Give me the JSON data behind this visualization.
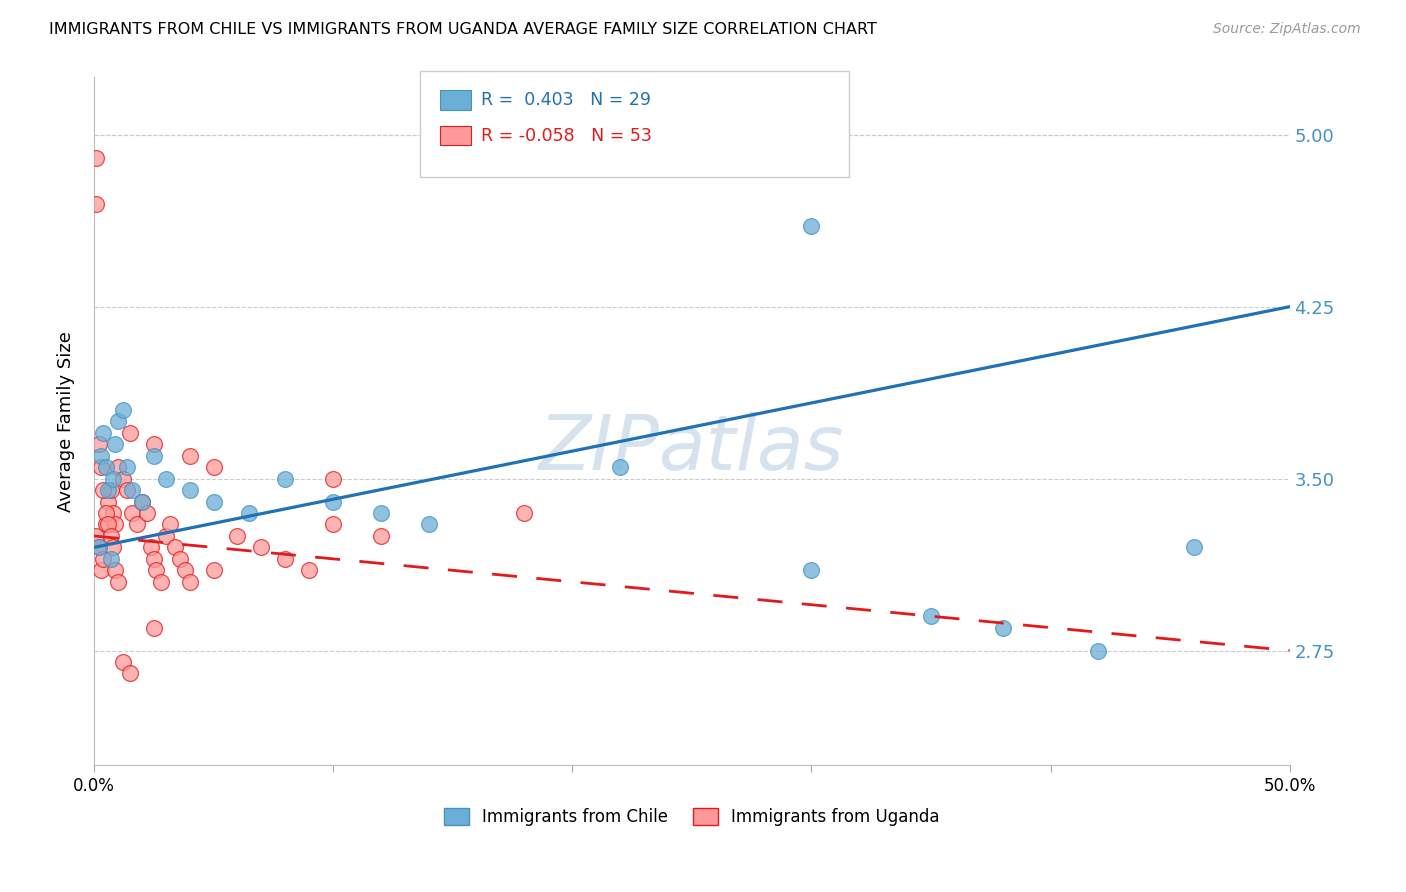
{
  "title": "IMMIGRANTS FROM CHILE VS IMMIGRANTS FROM UGANDA AVERAGE FAMILY SIZE CORRELATION CHART",
  "source": "Source: ZipAtlas.com",
  "ylabel": "Average Family Size",
  "yticks_right": [
    2.75,
    3.5,
    4.25,
    5.0
  ],
  "xlim": [
    0.0,
    0.5
  ],
  "ylim": [
    2.25,
    5.25
  ],
  "chile_color": "#6baed6",
  "chile_edge": "#4292c6",
  "uganda_color": "#fb9a99",
  "uganda_edge": "#e31a1c",
  "chile_R": 0.403,
  "chile_N": 29,
  "uganda_R": -0.058,
  "uganda_N": 53,
  "chile_line_color": "#2171b5",
  "uganda_line_color": "#e31a1c",
  "watermark": "ZIPatlas",
  "legend_label_chile": "Immigrants from Chile",
  "legend_label_uganda": "Immigrants from Uganda",
  "chile_x": [
    0.002,
    0.003,
    0.004,
    0.005,
    0.006,
    0.007,
    0.008,
    0.009,
    0.01,
    0.012,
    0.014,
    0.016,
    0.02,
    0.025,
    0.03,
    0.04,
    0.05,
    0.065,
    0.08,
    0.1,
    0.12,
    0.14,
    0.22,
    0.3,
    0.35,
    0.38,
    0.42,
    0.46,
    0.3
  ],
  "chile_y": [
    3.2,
    3.6,
    3.7,
    3.55,
    3.45,
    3.15,
    3.5,
    3.65,
    3.75,
    3.8,
    3.55,
    3.45,
    3.4,
    3.6,
    3.5,
    3.45,
    3.4,
    3.35,
    3.5,
    3.4,
    3.35,
    3.3,
    3.55,
    3.1,
    2.9,
    2.85,
    2.75,
    3.2,
    4.6
  ],
  "uganda_x": [
    0.001,
    0.001,
    0.002,
    0.003,
    0.004,
    0.005,
    0.006,
    0.007,
    0.008,
    0.009,
    0.01,
    0.012,
    0.014,
    0.016,
    0.018,
    0.02,
    0.022,
    0.024,
    0.025,
    0.026,
    0.028,
    0.03,
    0.032,
    0.034,
    0.036,
    0.038,
    0.04,
    0.05,
    0.06,
    0.07,
    0.08,
    0.09,
    0.1,
    0.12,
    0.015,
    0.025,
    0.04,
    0.05,
    0.1,
    0.18,
    0.001,
    0.002,
    0.003,
    0.004,
    0.005,
    0.006,
    0.007,
    0.008,
    0.009,
    0.01,
    0.012,
    0.015,
    0.025
  ],
  "uganda_y": [
    4.7,
    3.25,
    3.2,
    3.1,
    3.15,
    3.3,
    3.4,
    3.45,
    3.35,
    3.3,
    3.55,
    3.5,
    3.45,
    3.35,
    3.3,
    3.4,
    3.35,
    3.2,
    3.15,
    3.1,
    3.05,
    3.25,
    3.3,
    3.2,
    3.15,
    3.1,
    3.05,
    3.1,
    3.25,
    3.2,
    3.15,
    3.1,
    3.3,
    3.25,
    3.7,
    3.65,
    3.6,
    3.55,
    3.5,
    3.35,
    4.9,
    3.65,
    3.55,
    3.45,
    3.35,
    3.3,
    3.25,
    3.2,
    3.1,
    3.05,
    2.7,
    2.65,
    2.85
  ],
  "chile_line_x": [
    0.0,
    0.5
  ],
  "chile_line_y": [
    3.2,
    4.25
  ],
  "uganda_line_x": [
    0.0,
    0.5
  ],
  "uganda_line_y": [
    3.25,
    2.75
  ]
}
